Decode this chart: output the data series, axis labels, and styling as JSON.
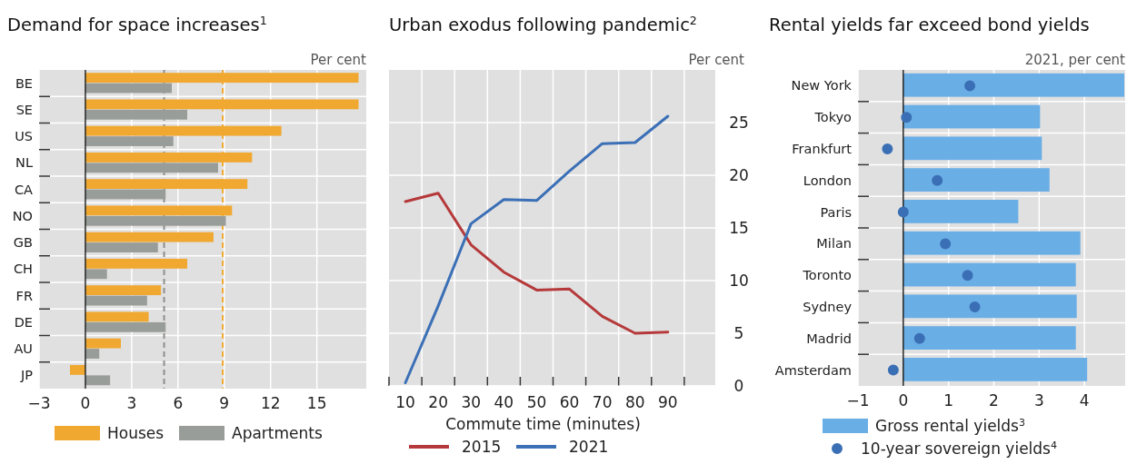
{
  "chart_data": [
    {
      "type": "bar",
      "orientation": "horizontal",
      "title": "Demand for space increases$^{1}$",
      "xlabel": "Per cent",
      "categories": [
        "BE",
        "SE",
        "US",
        "NL",
        "CA",
        "NO",
        "GB",
        "CH",
        "FR",
        "DE",
        "AU",
        "JP"
      ],
      "series": [
        {
          "name": "Houses",
          "color": "#f0a830",
          "values": [
            17.7,
            17.7,
            12.7,
            10.8,
            10.5,
            9.5,
            8.3,
            6.6,
            4.9,
            4.1,
            2.3,
            -1.0
          ]
        },
        {
          "name": "Apartments",
          "color": "#999d99",
          "values": [
            5.6,
            6.6,
            5.7,
            8.6,
            5.2,
            9.1,
            4.7,
            1.4,
            4.0,
            5.2,
            0.9,
            1.6
          ]
        }
      ],
      "xlim": [
        -3,
        18.2
      ],
      "xticks": [
        -3,
        0,
        3,
        6,
        9,
        12,
        15
      ],
      "grid": true,
      "legend": "bottom",
      "ref_lines": [
        {
          "axis": "x",
          "value": 5.1,
          "color": "#8c8f8c",
          "line_style": "dashed"
        },
        {
          "axis": "x",
          "value": 8.9,
          "color": "#f0a830",
          "line_style": "dashed"
        }
      ]
    },
    {
      "type": "line",
      "title": "Urban exodus following pandemic$^{2}$",
      "xlabel": "Commute time (minutes)",
      "ylabel": "Per cent",
      "categories": [
        "10",
        "20",
        "30",
        "40",
        "50",
        "60",
        "70",
        "80",
        "90"
      ],
      "series": [
        {
          "name": "2015",
          "color": "#b5393a",
          "values": [
            17.5,
            18.3,
            13.4,
            10.8,
            9.1,
            9.2,
            6.6,
            5.0,
            5.1
          ]
        },
        {
          "name": "2021",
          "color": "#3b6fb6",
          "values": [
            0.3,
            7.6,
            15.4,
            17.7,
            17.6,
            20.4,
            23.0,
            23.1,
            25.6
          ]
        }
      ],
      "ylim": [
        0,
        30
      ],
      "yticks": [
        0,
        5,
        10,
        15,
        20,
        25
      ],
      "grid": true,
      "legend": "bottom"
    },
    {
      "type": "bar",
      "orientation": "horizontal",
      "title": "Rental yields far exceed bond yields",
      "xlabel": "2021, per cent",
      "categories": [
        "New York",
        "Tokyo",
        "Frankfurt",
        "London",
        "Paris",
        "Milan",
        "Toronto",
        "Sydney",
        "Madrid",
        "Amsterdam"
      ],
      "series": [
        {
          "name": "Gross rental yields$^{3}$",
          "color": "#6aaee6",
          "values": [
            4.88,
            3.02,
            3.06,
            3.23,
            2.54,
            3.91,
            3.81,
            3.83,
            3.81,
            4.06
          ]
        },
        {
          "name": "10-year sovereign yields$^{4}$",
          "type": "scatter",
          "color": "#3a6fb5",
          "x": [
            "New York",
            "Tokyo",
            "Frankfurt",
            "London",
            "Paris",
            "Milan",
            "Toronto",
            "Sydney",
            "Madrid",
            "Amsterdam"
          ],
          "values": [
            1.47,
            0.07,
            -0.35,
            0.75,
            0.0,
            0.93,
            1.42,
            1.58,
            0.36,
            -0.22
          ]
        }
      ],
      "xlim": [
        -1,
        4.9
      ],
      "xticks": [
        -1,
        0,
        1,
        2,
        3,
        4
      ],
      "grid": true,
      "legend": "bottom",
      "marker": "circle"
    }
  ]
}
